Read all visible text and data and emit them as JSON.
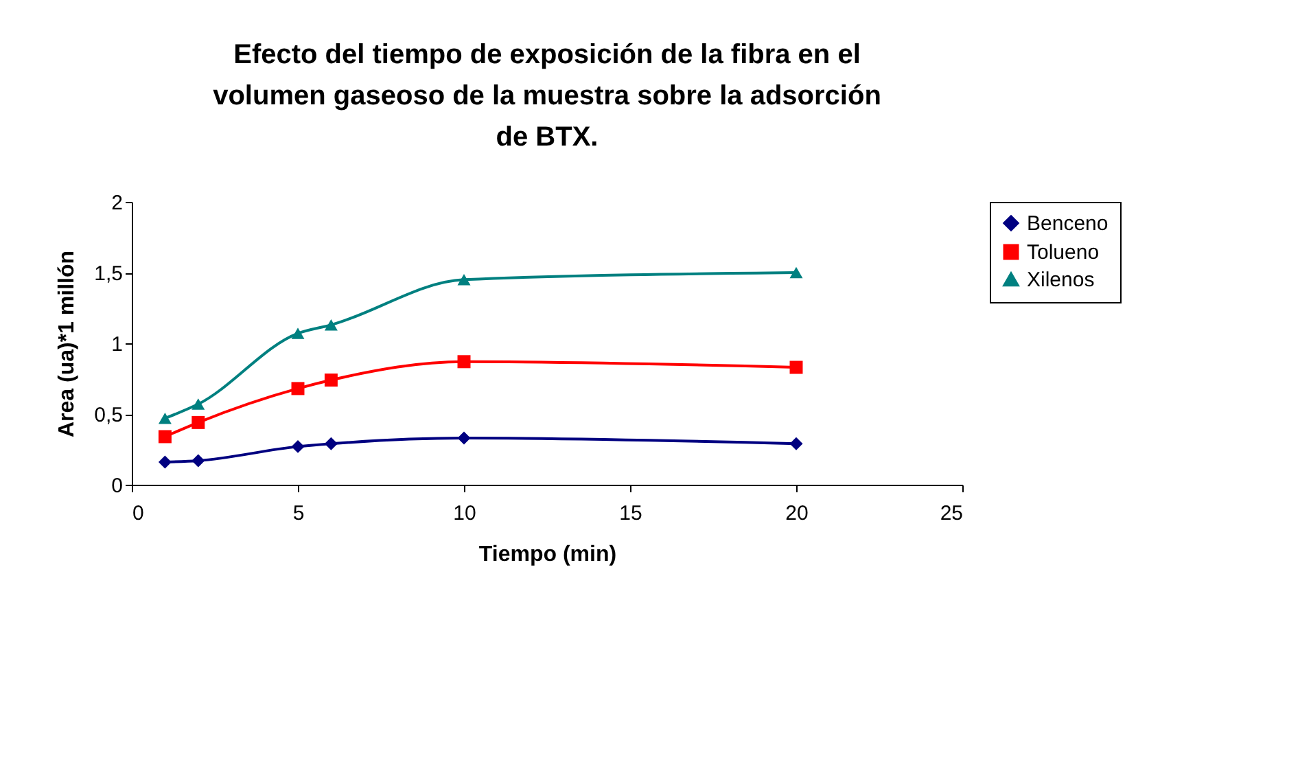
{
  "chart_data": {
    "type": "line",
    "title": "Efecto del tiempo de exposición de la fibra en el volumen gaseoso de la muestra sobre la adsorción de BTX.",
    "xlabel": "Tiempo (min)",
    "ylabel": "Area (ua)*1 millón",
    "x": [
      1,
      2,
      5,
      6,
      10,
      20
    ],
    "series": [
      {
        "name": "Benceno",
        "color": "#000080",
        "marker": "diamond",
        "values": [
          0.16,
          0.17,
          0.27,
          0.29,
          0.33,
          0.29
        ]
      },
      {
        "name": "Tolueno",
        "color": "#ff0000",
        "marker": "square",
        "values": [
          0.34,
          0.44,
          0.68,
          0.74,
          0.87,
          0.83
        ]
      },
      {
        "name": "Xilenos",
        "color": "#008080",
        "marker": "triangle",
        "values": [
          0.47,
          0.57,
          1.07,
          1.13,
          1.45,
          1.5
        ]
      }
    ],
    "xlim": [
      0,
      25
    ],
    "xticks": [
      0,
      5,
      10,
      15,
      20,
      25
    ],
    "ylim": [
      0,
      2
    ],
    "yticks": [
      0,
      {
        "value": 0.5,
        "label": "0,5"
      },
      1,
      {
        "value": 1.5,
        "label": "1,5"
      },
      2
    ],
    "grid": false,
    "legend": "right",
    "line_style": "solid"
  }
}
